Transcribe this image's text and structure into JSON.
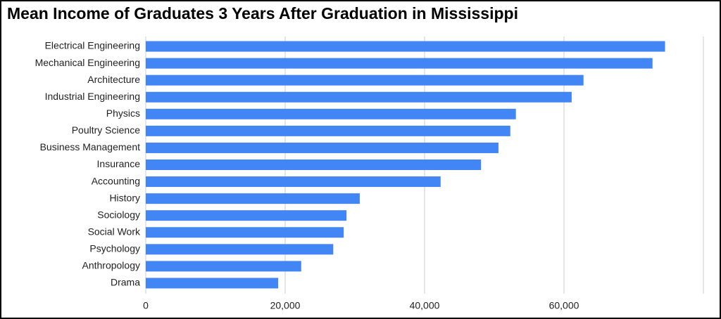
{
  "chart_data": {
    "type": "bar",
    "orientation": "horizontal",
    "title": "Mean Income of Graduates 3 Years After Graduation in Mississippi",
    "categories": [
      "Electrical Engineering",
      "Mechanical Engineering",
      "Architecture",
      "Industrial Engineering",
      "Physics",
      "Poultry Science",
      "Business Management",
      "Insurance",
      "Accounting",
      "History",
      "Sociology",
      "Social Work",
      "Psychology",
      "Anthropology",
      "Drama"
    ],
    "values": [
      74500,
      72700,
      62800,
      61100,
      53100,
      52300,
      50600,
      48100,
      42300,
      30700,
      28800,
      28400,
      26900,
      22300,
      19000
    ],
    "color": "#4285f4",
    "xlim": [
      0,
      80000
    ],
    "xticks": [
      0,
      {
        "value": 20000,
        "label": "20,000"
      },
      {
        "value": 40000,
        "label": "40,000"
      },
      {
        "value": 60000,
        "label": "60,000"
      }
    ],
    "grid": true
  }
}
